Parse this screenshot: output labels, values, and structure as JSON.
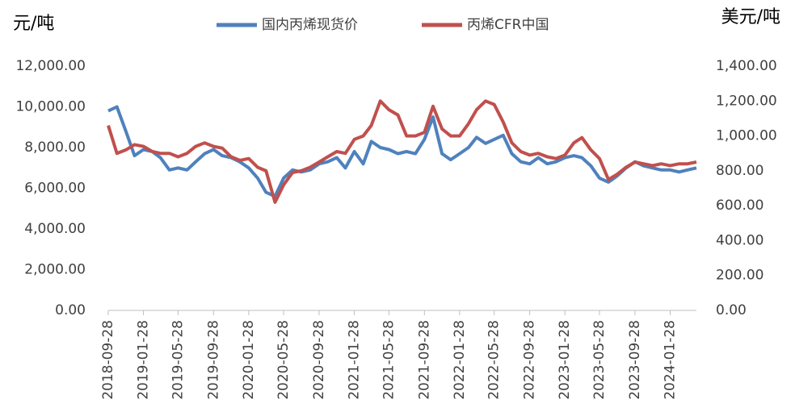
{
  "chart_data": {
    "type": "line",
    "y_label": "元/吨",
    "y2_label": "美元/吨",
    "x": [
      "2018-09-28",
      "2018-10-28",
      "2018-11-28",
      "2018-12-28",
      "2019-01-28",
      "2019-02-28",
      "2019-03-28",
      "2019-04-28",
      "2019-05-28",
      "2019-06-28",
      "2019-07-28",
      "2019-08-28",
      "2019-09-28",
      "2019-10-28",
      "2019-11-28",
      "2019-12-28",
      "2020-01-28",
      "2020-02-28",
      "2020-03-28",
      "2020-04-28",
      "2020-05-28",
      "2020-06-28",
      "2020-07-28",
      "2020-08-28",
      "2020-09-28",
      "2020-10-28",
      "2020-11-28",
      "2020-12-28",
      "2021-01-28",
      "2021-02-28",
      "2021-03-28",
      "2021-04-28",
      "2021-05-28",
      "2021-06-28",
      "2021-07-28",
      "2021-08-28",
      "2021-09-28",
      "2021-10-28",
      "2021-11-28",
      "2021-12-28",
      "2022-01-28",
      "2022-02-28",
      "2022-03-28",
      "2022-04-28",
      "2022-05-28",
      "2022-06-28",
      "2022-07-28",
      "2022-08-28",
      "2022-09-28",
      "2022-10-28",
      "2022-11-28",
      "2022-12-28",
      "2023-01-28",
      "2023-02-28",
      "2023-03-28",
      "2023-04-28",
      "2023-05-28",
      "2023-06-28",
      "2023-07-28",
      "2023-08-28",
      "2023-09-28",
      "2023-10-28",
      "2023-11-28",
      "2023-12-28",
      "2024-01-28",
      "2024-02-28",
      "2024-03-28",
      "2024-04-28"
    ],
    "series": [
      {
        "name": "国内丙烯现货价",
        "color": "#4f81bd",
        "axis": "y",
        "values": [
          9800,
          10000,
          8800,
          7600,
          7900,
          7800,
          7500,
          6900,
          7000,
          6900,
          7300,
          7700,
          7900,
          7600,
          7500,
          7300,
          7000,
          6500,
          5800,
          5600,
          6500,
          6900,
          6800,
          6900,
          7200,
          7300,
          7500,
          7000,
          7800,
          7200,
          8300,
          8000,
          7900,
          7700,
          7800,
          7700,
          8400,
          9500,
          7700,
          7400,
          7700,
          8000,
          8500,
          8200,
          8400,
          8600,
          7700,
          7300,
          7200,
          7500,
          7200,
          7300,
          7500,
          7600,
          7500,
          7100,
          6500,
          6300,
          6600,
          7000,
          7300,
          7100,
          7000,
          6900,
          6900,
          6800,
          6900,
          7000
        ]
      },
      {
        "name": "丙烯CFR中国",
        "color": "#c0504d",
        "axis": "y2",
        "values": [
          1060,
          900,
          920,
          950,
          940,
          910,
          900,
          900,
          880,
          900,
          940,
          960,
          940,
          930,
          880,
          860,
          870,
          820,
          800,
          620,
          720,
          790,
          800,
          820,
          850,
          880,
          910,
          900,
          980,
          1000,
          1060,
          1200,
          1150,
          1120,
          1000,
          1000,
          1020,
          1170,
          1040,
          1000,
          1000,
          1070,
          1150,
          1200,
          1180,
          1080,
          960,
          910,
          890,
          900,
          880,
          870,
          890,
          960,
          990,
          920,
          870,
          750,
          780,
          820,
          850,
          840,
          830,
          840,
          830,
          840,
          840,
          850
        ]
      }
    ],
    "xlim": [
      "2018-09-28",
      "2024-04-28"
    ],
    "xticks": [
      "2018-09-28",
      "2019-01-28",
      "2019-05-28",
      "2019-09-28",
      "2020-01-28",
      "2020-05-28",
      "2020-09-28",
      "2021-01-28",
      "2021-05-28",
      "2021-09-28",
      "2022-01-28",
      "2022-05-28",
      "2022-09-28",
      "2023-01-28",
      "2023-05-28",
      "2023-09-28",
      "2024-01-28"
    ],
    "ylim": [
      0,
      12000
    ],
    "yticks": [
      {
        "value": 0,
        "label": "0.00"
      },
      {
        "value": 2000,
        "label": "2,000.00"
      },
      {
        "value": 4000,
        "label": "4,000.00"
      },
      {
        "value": 6000,
        "label": "6,000.00"
      },
      {
        "value": 8000,
        "label": "8,000.00"
      },
      {
        "value": 10000,
        "label": "10,000.00"
      },
      {
        "value": 12000,
        "label": "12,000.00"
      }
    ],
    "y2lim": [
      0,
      1400
    ],
    "y2ticks": [
      {
        "value": 0,
        "label": "0.00"
      },
      {
        "value": 200,
        "label": "200.00"
      },
      {
        "value": 400,
        "label": "400.00"
      },
      {
        "value": 600,
        "label": "600.00"
      },
      {
        "value": 800,
        "label": "800.00"
      },
      {
        "value": 1000,
        "label": "1,000.00"
      },
      {
        "value": 1200,
        "label": "1,200.00"
      },
      {
        "value": 1400,
        "label": "1,400.00"
      }
    ],
    "grid": false,
    "legend": "top"
  }
}
